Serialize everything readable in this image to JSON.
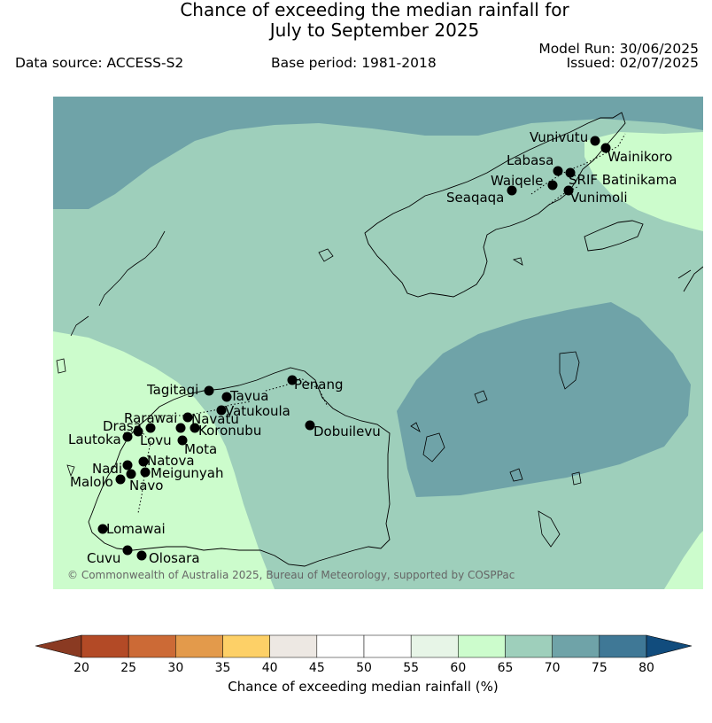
{
  "header": {
    "title_line1": "Chance of exceeding the median rainfall for",
    "title_line2": "July to September 2025",
    "data_source": "Data source: ACCESS-S2",
    "base_period": "Base period: 1981-2018",
    "model_run": "Model Run: 30/06/2025",
    "issued": "Issued: 02/07/2025"
  },
  "map": {
    "credit": "© Commonwealth of Australia 2025, Bureau of Meteorology, supported by COSPPac",
    "colors": {
      "c60_65": "#ccfccc",
      "c65_70": "#9ecfbb",
      "c70_75": "#6fa3a8",
      "coast": "#000000"
    },
    "towns": [
      {
        "name": "Vunivutu"
      },
      {
        "name": "Wainikoro"
      },
      {
        "name": "Labasa"
      },
      {
        "name": "SRIF Batinikama"
      },
      {
        "name": "Waiqele"
      },
      {
        "name": "Seaqaqa"
      },
      {
        "name": "Vunimoli"
      },
      {
        "name": "Penang"
      },
      {
        "name": "Tagitagi"
      },
      {
        "name": "Tavua"
      },
      {
        "name": "Vatukoula"
      },
      {
        "name": "Rarawai"
      },
      {
        "name": "Navatu"
      },
      {
        "name": "Drasa"
      },
      {
        "name": "Koronubu"
      },
      {
        "name": "Lautoka"
      },
      {
        "name": "Lovu"
      },
      {
        "name": "Dobuilevu"
      },
      {
        "name": "Mota"
      },
      {
        "name": "Natova"
      },
      {
        "name": "Nadi"
      },
      {
        "name": "Meigunyah"
      },
      {
        "name": "Malolo"
      },
      {
        "name": "Navo"
      },
      {
        "name": "Lomawai"
      },
      {
        "name": "Cuvu"
      },
      {
        "name": "Olosara"
      }
    ]
  },
  "colorbar": {
    "label": "Chance of exceeding median rainfall (%)",
    "ticks": [
      "20",
      "25",
      "30",
      "35",
      "40",
      "45",
      "50",
      "55",
      "60",
      "65",
      "70",
      "75",
      "80"
    ],
    "bins": [
      "#b34a26",
      "#cc6a36",
      "#e39a4b",
      "#fdd067",
      "#ede8e3",
      "#ffffff",
      "#ffffff",
      "#e7f5e7",
      "#ccfccc",
      "#9ecfbb",
      "#6fa3a8",
      "#3f7896"
    ],
    "under_color": "#8a3a22",
    "over_color": "#114c7d"
  }
}
